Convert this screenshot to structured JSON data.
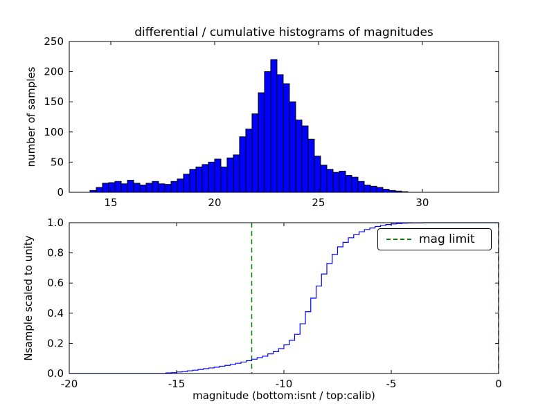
{
  "figure": {
    "background": "#ffffff"
  },
  "chart_data": [
    {
      "type": "bar",
      "title": "differential / cumulative histograms of magnitudes",
      "ylabel": "number of samples",
      "bin_start": 14.0,
      "bin_width": 0.3,
      "counts": [
        3,
        8,
        15,
        16,
        18,
        14,
        20,
        15,
        12,
        15,
        18,
        14,
        13,
        18,
        22,
        30,
        38,
        42,
        46,
        50,
        55,
        42,
        57,
        62,
        92,
        105,
        130,
        165,
        200,
        220,
        195,
        180,
        150,
        120,
        110,
        88,
        60,
        45,
        38,
        33,
        35,
        28,
        25,
        18,
        12,
        10,
        8,
        5,
        3,
        2,
        1
      ],
      "xlim": [
        13,
        33.67
      ],
      "ylim": [
        0,
        250
      ],
      "xticks": [
        "15",
        "20",
        "25",
        "30"
      ],
      "yticks": [
        "0",
        "50",
        "100",
        "150",
        "200",
        "250"
      ],
      "bar_color": "#0000ff",
      "edge_color": "#000000",
      "grid": false
    },
    {
      "type": "line",
      "ylabel": "Nsample scaled to unity",
      "xlabel": "magnitude (bottom:isnt / top:calib)",
      "xlim": [
        -20,
        0
      ],
      "ylim": [
        0,
        1
      ],
      "xticks": [
        "-20",
        "-15",
        "-10",
        "-5",
        "0"
      ],
      "yticks": [
        "0.0",
        "0.2",
        "0.4",
        "0.6",
        "0.8",
        "1.0"
      ],
      "line_color": "#0000ff",
      "step_points": [
        [
          -20,
          0
        ],
        [
          -15.5,
          0.004
        ],
        [
          -15.25,
          0.006
        ],
        [
          -15,
          0.01
        ],
        [
          -14.75,
          0.013
        ],
        [
          -14.5,
          0.018
        ],
        [
          -14.25,
          0.022
        ],
        [
          -14,
          0.027
        ],
        [
          -13.75,
          0.032
        ],
        [
          -13.5,
          0.037
        ],
        [
          -13.25,
          0.042
        ],
        [
          -13,
          0.048
        ],
        [
          -12.75,
          0.054
        ],
        [
          -12.5,
          0.06
        ],
        [
          -12.25,
          0.068
        ],
        [
          -12,
          0.076
        ],
        [
          -11.75,
          0.085
        ],
        [
          -11.5,
          0.095
        ],
        [
          -11.25,
          0.105
        ],
        [
          -11,
          0.115
        ],
        [
          -10.75,
          0.13
        ],
        [
          -10.5,
          0.145
        ],
        [
          -10.25,
          0.165
        ],
        [
          -10,
          0.19
        ],
        [
          -9.75,
          0.22
        ],
        [
          -9.5,
          0.26
        ],
        [
          -9.25,
          0.33
        ],
        [
          -9,
          0.41
        ],
        [
          -8.75,
          0.5
        ],
        [
          -8.5,
          0.58
        ],
        [
          -8.25,
          0.66
        ],
        [
          -8,
          0.73
        ],
        [
          -7.75,
          0.79
        ],
        [
          -7.5,
          0.84
        ],
        [
          -7.25,
          0.87
        ],
        [
          -7,
          0.9
        ],
        [
          -6.75,
          0.92
        ],
        [
          -6.5,
          0.94
        ],
        [
          -6.25,
          0.955
        ],
        [
          -6,
          0.965
        ],
        [
          -5.75,
          0.975
        ],
        [
          -5.5,
          0.982
        ],
        [
          -5.25,
          0.988
        ],
        [
          -5,
          0.992
        ],
        [
          -4.75,
          0.995
        ],
        [
          -4.5,
          0.997
        ],
        [
          -4.25,
          0.998
        ],
        [
          -4,
          0.999
        ],
        [
          -3.5,
          1.0
        ],
        [
          0,
          1.0
        ]
      ],
      "vlines": [
        {
          "x": -11.5,
          "color": "#008000",
          "style": "dashed",
          "label": "mag limit"
        },
        {
          "x": 0,
          "color": "#008000",
          "style": "dashed"
        }
      ],
      "legend": {
        "label": "mag limit",
        "position": "upper right"
      },
      "grid": false
    }
  ]
}
